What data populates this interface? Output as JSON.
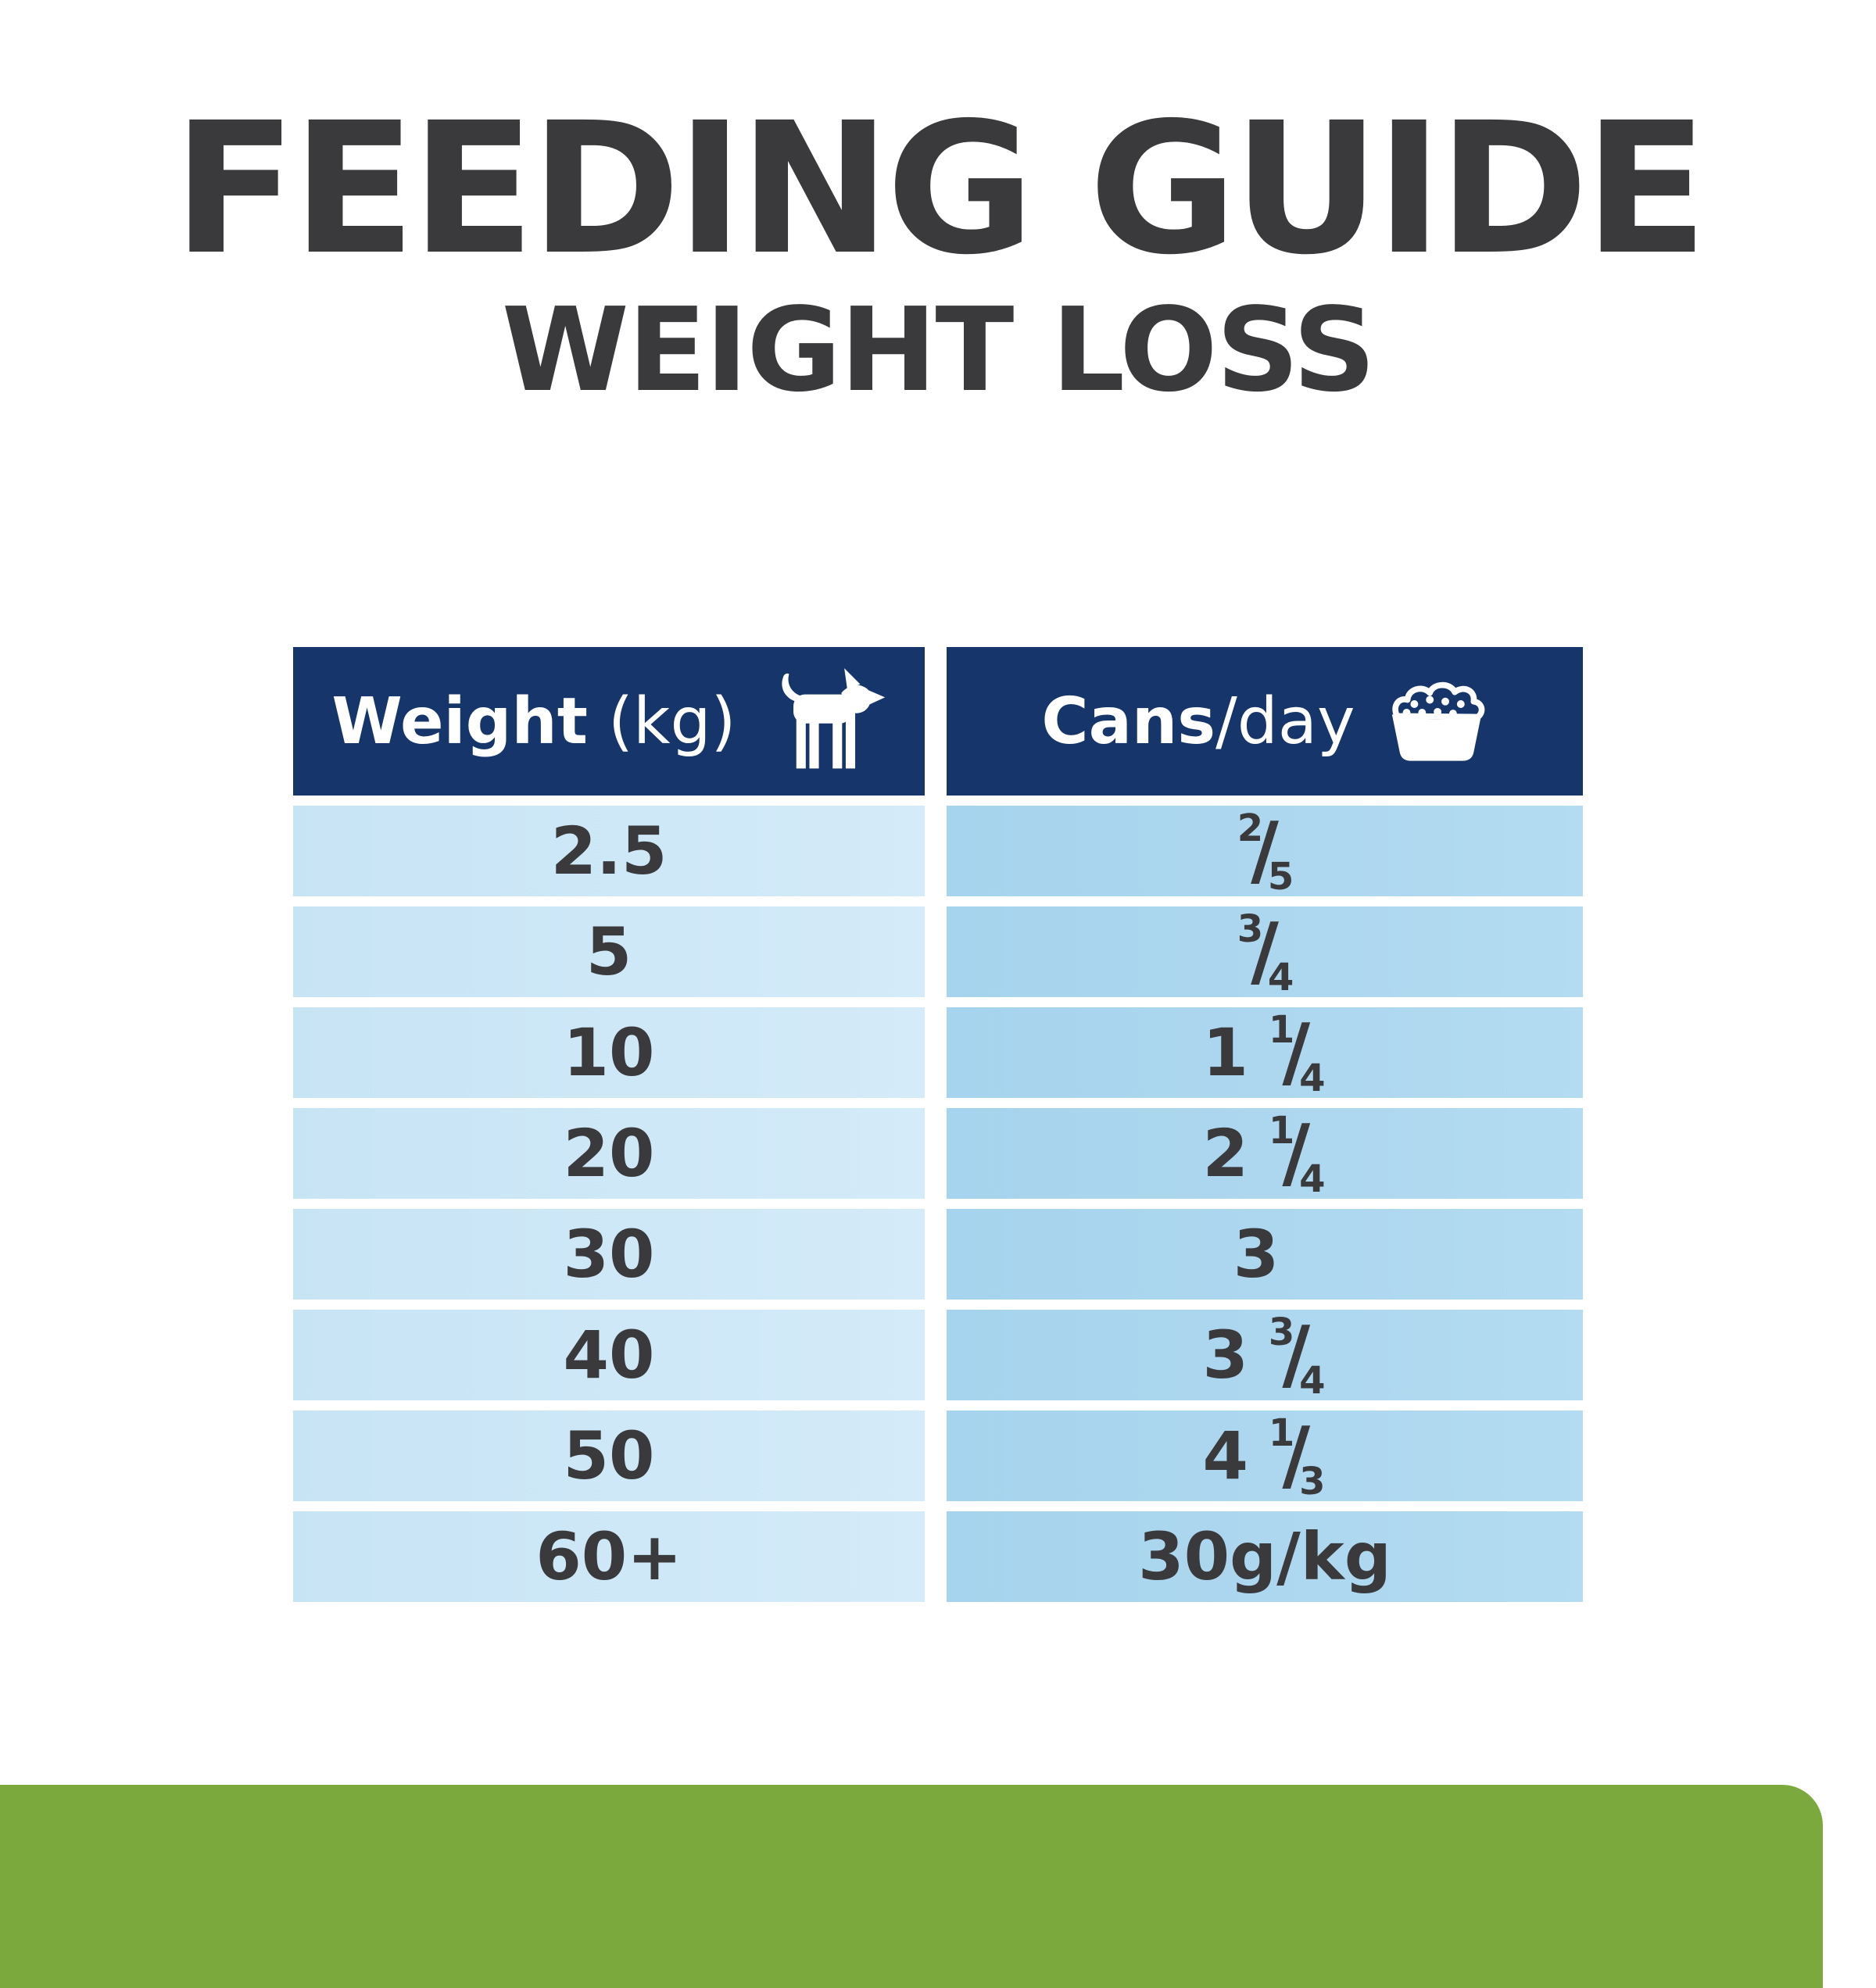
{
  "title": "FEEDING GUIDE",
  "subtitle": "WEIGHT LOSS",
  "table": {
    "header": {
      "weight_bold": "Weight",
      "weight_unit": "(kg)",
      "weight_icon": "dog-icon",
      "cans_bold": "Cans",
      "cans_unit": "/day",
      "cans_icon": "food-bowl-icon"
    },
    "rows": [
      {
        "weight": "2.5",
        "cans": {
          "whole": "",
          "num": "2",
          "den": "5"
        }
      },
      {
        "weight": "5",
        "cans": {
          "whole": "",
          "num": "3",
          "den": "4"
        }
      },
      {
        "weight": "10",
        "cans": {
          "whole": "1",
          "num": "1",
          "den": "4"
        }
      },
      {
        "weight": "20",
        "cans": {
          "whole": "2",
          "num": "1",
          "den": "4"
        }
      },
      {
        "weight": "30",
        "cans": {
          "whole": "3"
        }
      },
      {
        "weight": "40",
        "cans": {
          "whole": "3",
          "num": "3",
          "den": "4"
        }
      },
      {
        "weight": "50",
        "cans": {
          "whole": "4",
          "num": "1",
          "den": "3"
        }
      },
      {
        "weight": "60+",
        "cans": {
          "text": "30g/kg"
        }
      }
    ]
  },
  "colors": {
    "heading_text": "#3A3A3C",
    "header_navy": "#16366B",
    "header_text": "#FFFFFF",
    "row_weight_blue": "#CDE7F6",
    "row_cans_blue": "#A9D5EE",
    "brand_green": "#7BA93D",
    "background": "#FFFFFF"
  }
}
